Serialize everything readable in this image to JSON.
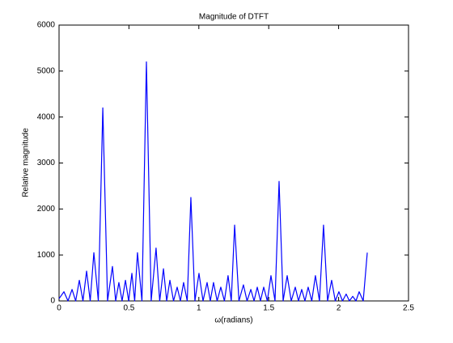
{
  "chart_data": {
    "type": "line",
    "title": "Magnitude of DTFT",
    "x_label": "ω(radians)",
    "y_label": "Relative magnitude",
    "series": [
      {
        "color": "#0000ff",
        "x": [
          0,
          0.035,
          0.064,
          0.093,
          0.119,
          0.145,
          0.171,
          0.197,
          0.223,
          0.249,
          0.281,
          0.313,
          0.347,
          0.382,
          0.405,
          0.428,
          0.451,
          0.475,
          0.498,
          0.521,
          0.541,
          0.561,
          0.593,
          0.625,
          0.659,
          0.694,
          0.72,
          0.747,
          0.77,
          0.793,
          0.819,
          0.845,
          0.868,
          0.891,
          0.917,
          0.943,
          0.972,
          1.001,
          1.03,
          1.059,
          1.082,
          1.105,
          1.131,
          1.157,
          1.183,
          1.209,
          1.232,
          1.256,
          1.287,
          1.319,
          1.345,
          1.372,
          1.395,
          1.418,
          1.441,
          1.464,
          1.49,
          1.516,
          1.545,
          1.574,
          1.603,
          1.632,
          1.661,
          1.69,
          1.713,
          1.736,
          1.759,
          1.782,
          1.808,
          1.834,
          1.863,
          1.892,
          1.921,
          1.95,
          1.976,
          2.002,
          2.028,
          2.054,
          2.077,
          2.101,
          2.124,
          2.147,
          2.176,
          2.205
        ],
        "values": [
          50,
          200,
          0,
          250,
          0,
          450,
          0,
          650,
          0,
          1050,
          0,
          4200,
          0,
          750,
          0,
          400,
          0,
          450,
          0,
          600,
          0,
          1050,
          0,
          5200,
          0,
          1150,
          0,
          700,
          0,
          450,
          0,
          300,
          0,
          400,
          0,
          2250,
          0,
          600,
          0,
          400,
          0,
          400,
          0,
          300,
          0,
          550,
          0,
          1650,
          0,
          350,
          0,
          250,
          0,
          300,
          0,
          300,
          0,
          550,
          0,
          2600,
          0,
          550,
          0,
          300,
          0,
          250,
          0,
          300,
          0,
          550,
          0,
          1650,
          0,
          450,
          0,
          200,
          0,
          150,
          0,
          100,
          0,
          200,
          0,
          1050
        ]
      }
    ],
    "xlim": [
      0,
      2.5
    ],
    "xticks": [
      0,
      0.5,
      1,
      1.5,
      2,
      2.5
    ],
    "ylim": [
      0,
      6000
    ],
    "yticks": [
      0,
      1000,
      2000,
      3000,
      4000,
      5000,
      6000
    ]
  }
}
